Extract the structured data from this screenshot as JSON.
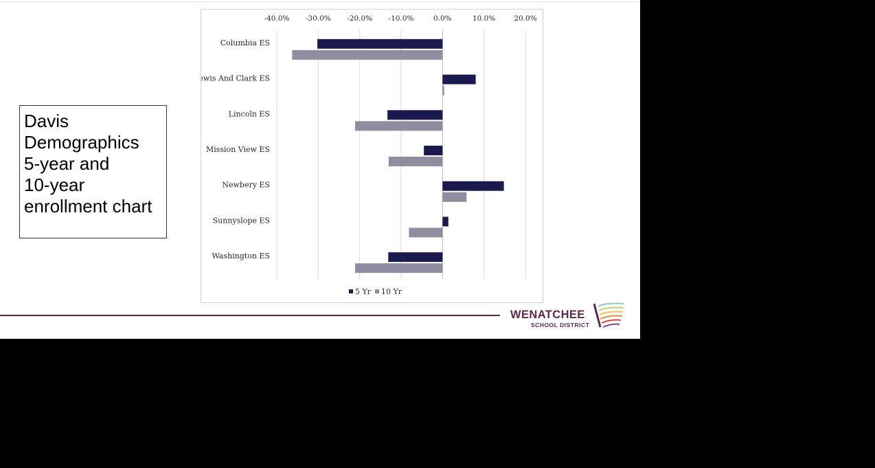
{
  "textbox": {
    "text": "Davis\nDemographics\n5-year and\n10-year\nenrollment chart"
  },
  "colors": {
    "series_5yr": "#1a1a4e",
    "series_10yr": "#8e8ea0",
    "gridline": "#d9d9d9",
    "brand": "#5e2750"
  },
  "chart_data": {
    "type": "bar",
    "orientation": "horizontal",
    "categories": [
      "Columbia ES",
      "Lewis And Clark ES",
      "Lincoln ES",
      "Mission View ES",
      "Newbery ES",
      "Sunnyslope ES",
      "Washington ES"
    ],
    "series": [
      {
        "name": "5 Yr",
        "values": [
          -30.2,
          8.0,
          -13.3,
          -4.5,
          14.8,
          1.4,
          -13.1
        ]
      },
      {
        "name": "10 Yr",
        "values": [
          -36.3,
          0.4,
          -21.1,
          -13.0,
          5.8,
          -8.1,
          -21.1
        ]
      }
    ],
    "x_ticks": [
      "-40.0%",
      "-30.0%",
      "-20.0%",
      "-10.0%",
      "0.0%",
      "10.0%",
      "20.0%"
    ],
    "xlim": [
      -40,
      20
    ],
    "grid": true,
    "legend_position": "bottom"
  },
  "logo": {
    "name": "WENATCHEE",
    "sub": "SCHOOL DISTRICT"
  }
}
